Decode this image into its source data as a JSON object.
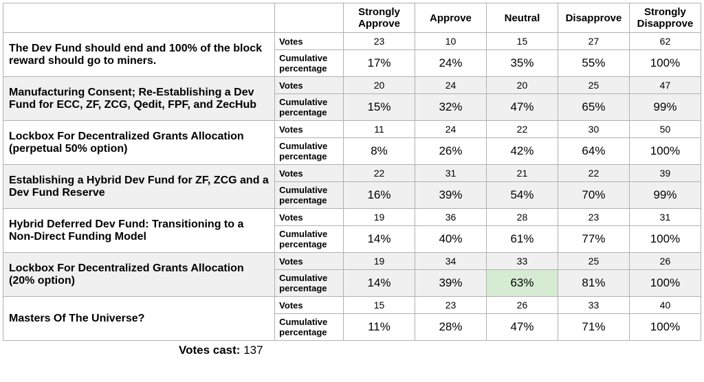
{
  "columns": [
    "Strongly Approve",
    "Approve",
    "Neutral",
    "Disapprove",
    "Strongly Disapprove"
  ],
  "metric_labels": {
    "votes": "Votes",
    "cumpct": "Cumulative percentage"
  },
  "proposals": [
    {
      "title": "The Dev Fund should end and 100% of the block reward should go to miners.",
      "shaded": false,
      "votes": [
        23,
        10,
        15,
        27,
        62
      ],
      "cumpct": [
        "17%",
        "24%",
        "35%",
        "55%",
        "100%"
      ],
      "highlight_col": -1
    },
    {
      "title": "Manufacturing Consent; Re-Establishing a Dev Fund for ECC, ZF, ZCG, Qedit, FPF, and ZecHub",
      "shaded": true,
      "votes": [
        20,
        24,
        20,
        25,
        47
      ],
      "cumpct": [
        "15%",
        "32%",
        "47%",
        "65%",
        "99%"
      ],
      "highlight_col": -1
    },
    {
      "title": "Lockbox For Decentralized Grants Allocation (perpetual 50% option)",
      "shaded": false,
      "votes": [
        11,
        24,
        22,
        30,
        50
      ],
      "cumpct": [
        "8%",
        "26%",
        "42%",
        "64%",
        "100%"
      ],
      "highlight_col": -1
    },
    {
      "title": "Establishing a Hybrid Dev Fund for ZF, ZCG and a Dev Fund Reserve",
      "shaded": true,
      "votes": [
        22,
        31,
        21,
        22,
        39
      ],
      "cumpct": [
        "16%",
        "39%",
        "54%",
        "70%",
        "99%"
      ],
      "highlight_col": -1
    },
    {
      "title": "Hybrid Deferred Dev Fund: Transitioning to a Non-Direct Funding Model",
      "shaded": false,
      "votes": [
        19,
        36,
        28,
        23,
        31
      ],
      "cumpct": [
        "14%",
        "40%",
        "61%",
        "77%",
        "100%"
      ],
      "highlight_col": -1
    },
    {
      "title": "Lockbox For Decentralized Grants Allocation (20% option)",
      "shaded": true,
      "votes": [
        19,
        34,
        33,
        25,
        26
      ],
      "cumpct": [
        "14%",
        "39%",
        "63%",
        "81%",
        "100%"
      ],
      "highlight_col": 2
    },
    {
      "title": "Masters Of The Universe?",
      "shaded": false,
      "votes": [
        15,
        23,
        26,
        33,
        40
      ],
      "cumpct": [
        "11%",
        "28%",
        "47%",
        "71%",
        "100%"
      ],
      "highlight_col": -1
    }
  ],
  "footer": {
    "label": "Votes cast:",
    "value": 137
  },
  "colors": {
    "border": "#b0b0b0",
    "shade": "#f0f0f0",
    "highlight": "#d6ecd2",
    "background": "#ffffff",
    "text": "#000000"
  }
}
